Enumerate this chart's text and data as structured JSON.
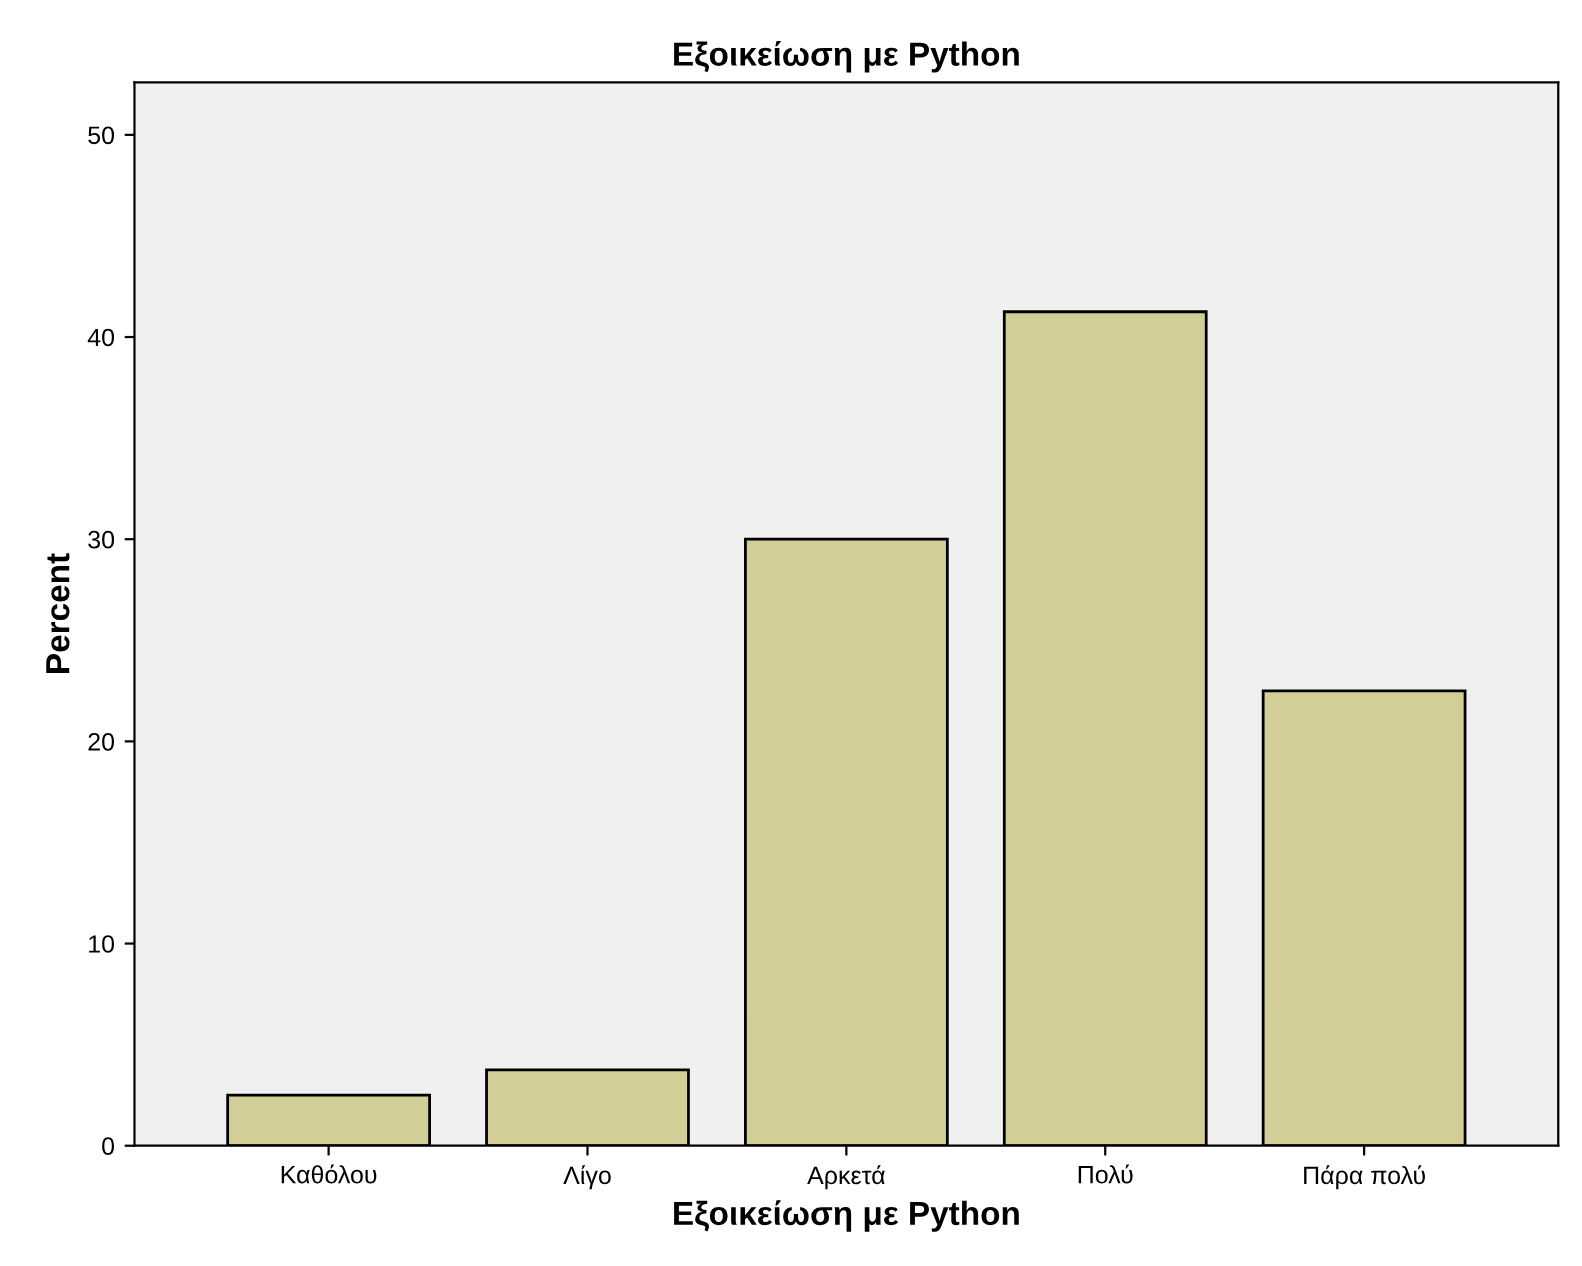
{
  "chart_data": {
    "type": "bar",
    "title": "Εξοικείωση με Python",
    "xlabel": "Εξοικείωση με Python",
    "ylabel": "Percent",
    "categories": [
      "Καθόλου",
      "Λίγο",
      "Αρκετά",
      "Πολύ",
      "Πάρα πολύ"
    ],
    "values": [
      2.5,
      3.75,
      30,
      41.25,
      22.5
    ],
    "color": "#d3ce97",
    "ylim": [
      0,
      52.6
    ],
    "yticks": [
      0,
      10,
      20,
      30,
      40,
      50
    ],
    "grid": false
  }
}
